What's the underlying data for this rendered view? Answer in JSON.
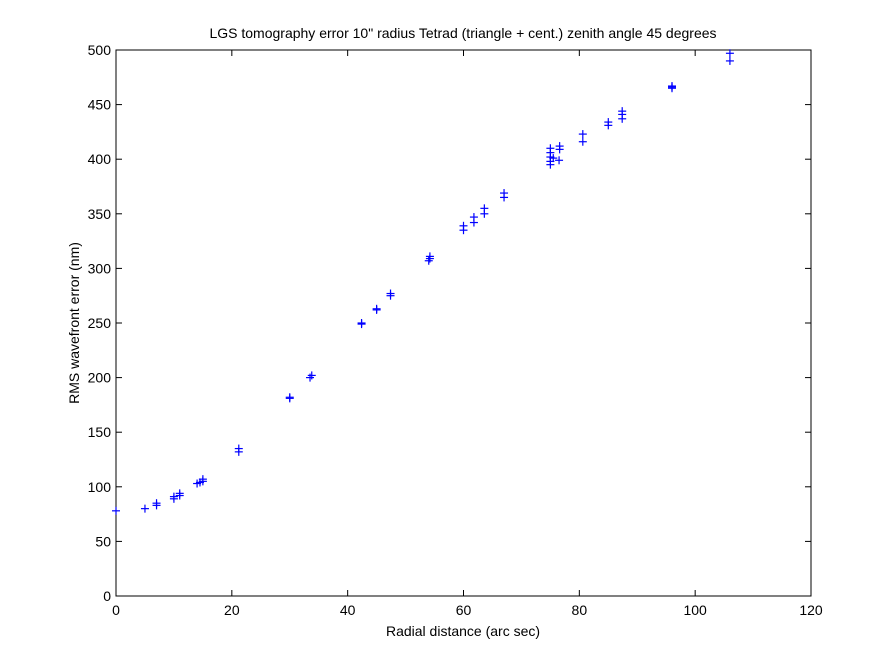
{
  "chart_data": {
    "type": "scatter",
    "title": "LGS tomography error 10\" radius Tetrad (triangle + cent.) zenith angle 45 degrees",
    "xlabel": "Radial distance (arc sec)",
    "ylabel": "RMS wavefront error (nm)",
    "xlim": [
      0,
      120
    ],
    "ylim": [
      0,
      500
    ],
    "xticks": [
      0,
      20,
      40,
      60,
      80,
      100,
      120
    ],
    "yticks": [
      0,
      50,
      100,
      150,
      200,
      250,
      300,
      350,
      400,
      450,
      500
    ],
    "grid": false,
    "marker": "+",
    "marker_color": "#0000ff",
    "series": [
      {
        "x": [
          0,
          5,
          7,
          7,
          10,
          10,
          11,
          11,
          14,
          14.5,
          15,
          15,
          21.2,
          21.2,
          30,
          30,
          33.5,
          33.8,
          42.4,
          42.4,
          45,
          45,
          47.4,
          47.4,
          54,
          54.2,
          54.2,
          60,
          60,
          61.8,
          61.8,
          63.6,
          63.6,
          67,
          67,
          75,
          75,
          75,
          75,
          75,
          75.5,
          76.5,
          76.6,
          76.6,
          80.6,
          80.6,
          85,
          85,
          87.4,
          87.4,
          87.4,
          96,
          96,
          96,
          106,
          106
        ],
        "y": [
          78,
          80,
          83,
          85,
          89,
          91,
          92,
          94,
          103,
          104,
          105,
          107,
          132,
          135,
          181,
          182,
          200,
          202,
          249,
          250,
          262,
          263,
          275,
          277,
          307,
          309,
          311,
          335,
          339,
          342,
          347,
          350,
          355,
          365,
          369,
          395,
          398,
          402,
          406,
          410,
          401,
          399,
          409,
          412,
          416,
          423,
          431,
          434,
          437,
          441,
          444,
          465,
          466,
          467,
          490,
          497
        ]
      }
    ]
  }
}
